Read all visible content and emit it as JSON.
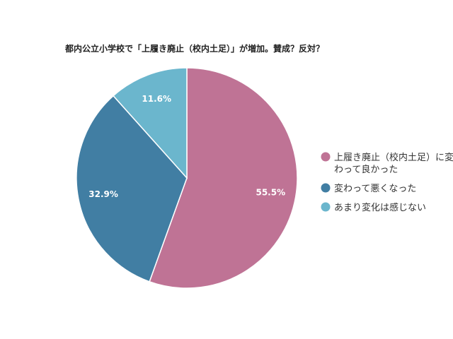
{
  "chart_data": {
    "type": "pie",
    "title": "都内公立小学校で「上履き廃止（校内土足）」が増加。賛成？反対？",
    "slices": [
      {
        "label": "上履き廃止（校内土足）に変わって良かった",
        "legend_lines": [
          "上履き廃止（校内土足）に変",
          "わって良かった"
        ],
        "value": 55.5,
        "display": "55.5%",
        "color": "#bf7395"
      },
      {
        "label": "変わって悪くなった",
        "legend_lines": [
          "変わって悪くなった"
        ],
        "value": 32.9,
        "display": "32.9%",
        "color": "#417ea3"
      },
      {
        "label": "あまり変化は感じない",
        "legend_lines": [
          "あまり変化は感じない"
        ],
        "value": 11.6,
        "display": "11.6%",
        "color": "#6bb6cd"
      }
    ],
    "start_angle": "12 o'clock",
    "direction": "clockwise",
    "legend_position": "right"
  }
}
